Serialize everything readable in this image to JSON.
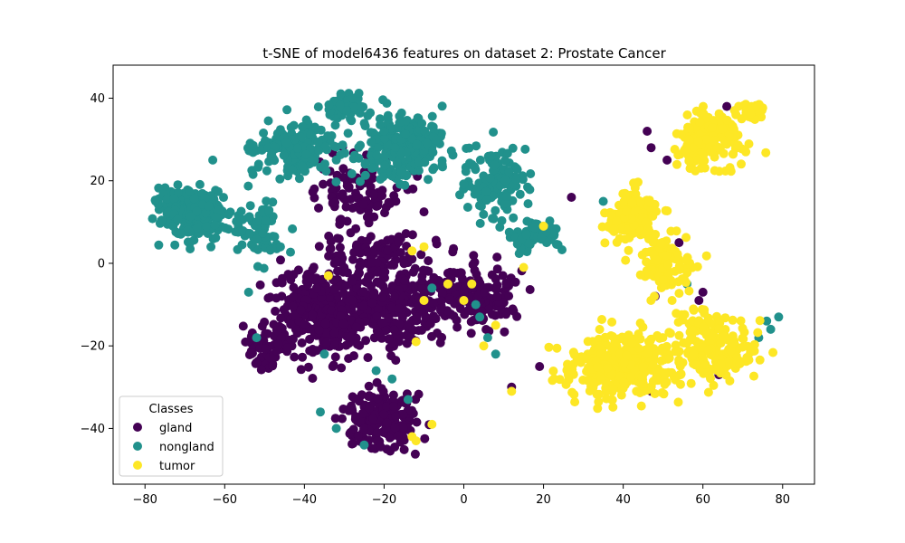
{
  "chart_data": {
    "type": "scatter",
    "title": "t-SNE of model6436 features on dataset 2: Prostate Cancer",
    "xlabel": "",
    "ylabel": "",
    "xlim": [
      -88,
      88
    ],
    "ylim": [
      -53.5,
      48
    ],
    "xticks": [
      -80,
      -60,
      -40,
      -20,
      0,
      20,
      40,
      60,
      80
    ],
    "yticks": [
      -40,
      -20,
      0,
      20,
      40
    ],
    "grid": false,
    "legend": {
      "title": "Classes",
      "placement": "lower-left"
    },
    "series": [
      {
        "name": "gland",
        "color": "#440154",
        "clusters": [
          {
            "cx": -35,
            "cy": -12,
            "sx": 10,
            "sy": 9,
            "n": 320
          },
          {
            "cx": -18,
            "cy": -10,
            "sx": 10,
            "sy": 10,
            "n": 260
          },
          {
            "cx": 3,
            "cy": -8,
            "sx": 9,
            "sy": 7,
            "n": 170
          },
          {
            "cx": -20,
            "cy": -38,
            "sx": 8,
            "sy": 6,
            "n": 180
          },
          {
            "cx": -50,
            "cy": -20,
            "sx": 5,
            "sy": 5,
            "n": 70
          },
          {
            "cx": -25,
            "cy": 18,
            "sx": 12,
            "sy": 10,
            "n": 110
          },
          {
            "cx": -20,
            "cy": 3,
            "sx": 12,
            "sy": 4,
            "n": 80
          }
        ],
        "points": [
          {
            "x": 47,
            "y": 28
          },
          {
            "x": 46,
            "y": 32
          },
          {
            "x": 66,
            "y": 38
          },
          {
            "x": 27,
            "y": 16
          },
          {
            "x": 54,
            "y": 5
          },
          {
            "x": 48,
            "y": -8
          },
          {
            "x": 59,
            "y": -9
          },
          {
            "x": 60,
            "y": -7
          },
          {
            "x": 47,
            "y": -31
          },
          {
            "x": 12,
            "y": -30
          },
          {
            "x": 19,
            "y": -25
          },
          {
            "x": 64,
            "y": -27
          },
          {
            "x": 51,
            "y": 25
          }
        ]
      },
      {
        "name": "nongland",
        "color": "#21918c",
        "clusters": [
          {
            "cx": -68,
            "cy": 12,
            "sx": 8,
            "sy": 6,
            "n": 210
          },
          {
            "cx": -42,
            "cy": 28,
            "sx": 9,
            "sy": 6,
            "n": 190
          },
          {
            "cx": -15,
            "cy": 28,
            "sx": 9,
            "sy": 7,
            "n": 230
          },
          {
            "cx": 8,
            "cy": 20,
            "sx": 7,
            "sy": 8,
            "n": 120
          },
          {
            "cx": 18,
            "cy": 7,
            "sx": 5,
            "sy": 3,
            "n": 80
          },
          {
            "cx": -30,
            "cy": 38,
            "sx": 6,
            "sy": 3,
            "n": 60
          },
          {
            "cx": -52,
            "cy": 8,
            "sx": 6,
            "sy": 6,
            "n": 70
          }
        ],
        "points": [
          {
            "x": -52,
            "y": -18
          },
          {
            "x": -54,
            "y": -7
          },
          {
            "x": -35,
            "y": -22
          },
          {
            "x": -22,
            "y": -26
          },
          {
            "x": -18,
            "y": -28
          },
          {
            "x": -14,
            "y": -33
          },
          {
            "x": -36,
            "y": -36
          },
          {
            "x": -32,
            "y": -40
          },
          {
            "x": -25,
            "y": -44
          },
          {
            "x": 4,
            "y": -13
          },
          {
            "x": 6,
            "y": -18
          },
          {
            "x": 8,
            "y": -22
          },
          {
            "x": 3,
            "y": -10
          },
          {
            "x": -8,
            "y": -6
          },
          {
            "x": 35,
            "y": 15
          },
          {
            "x": 56,
            "y": -5
          },
          {
            "x": 76,
            "y": -14
          },
          {
            "x": 77,
            "y": -16
          },
          {
            "x": 79,
            "y": -13
          },
          {
            "x": 74,
            "y": -18
          },
          {
            "x": -63,
            "y": 25
          },
          {
            "x": -28,
            "y": 40
          },
          {
            "x": -46,
            "y": 4
          },
          {
            "x": -20,
            "y": 32
          }
        ]
      },
      {
        "name": "tumor",
        "color": "#fde725",
        "clusters": [
          {
            "cx": 62,
            "cy": 30,
            "sx": 8,
            "sy": 6,
            "n": 170
          },
          {
            "cx": 42,
            "cy": 12,
            "sx": 6,
            "sy": 6,
            "n": 150
          },
          {
            "cx": 50,
            "cy": 0,
            "sx": 6,
            "sy": 6,
            "n": 110
          },
          {
            "cx": 40,
            "cy": -24,
            "sx": 12,
            "sy": 8,
            "n": 300
          },
          {
            "cx": 62,
            "cy": -20,
            "sx": 10,
            "sy": 7,
            "n": 180
          },
          {
            "cx": 72,
            "cy": 37,
            "sx": 3,
            "sy": 2,
            "n": 40
          }
        ],
        "points": [
          {
            "x": -13,
            "y": 3
          },
          {
            "x": -34,
            "y": -3
          },
          {
            "x": -12,
            "y": -19
          },
          {
            "x": -13,
            "y": -42
          },
          {
            "x": -12,
            "y": -43
          },
          {
            "x": 8,
            "y": -15
          },
          {
            "x": -8,
            "y": -39
          },
          {
            "x": -10,
            "y": 4
          },
          {
            "x": -4,
            "y": -5
          },
          {
            "x": 2,
            "y": -5
          },
          {
            "x": 15,
            "y": -1
          },
          {
            "x": 12,
            "y": -31
          },
          {
            "x": -10,
            "y": -9
          },
          {
            "x": 0,
            "y": -9
          },
          {
            "x": 5,
            "y": -20
          },
          {
            "x": 20,
            "y": 9
          }
        ]
      }
    ]
  }
}
